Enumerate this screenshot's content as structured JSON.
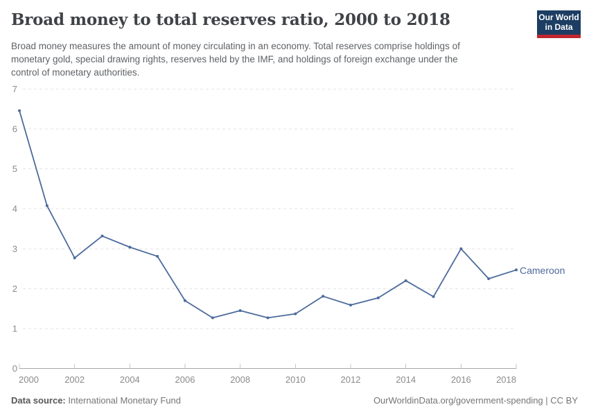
{
  "header": {
    "title": "Broad money to total reserves ratio, 2000 to 2018",
    "subtitle_lines": [
      "Broad money measures the amount of money circulating in an economy. Total reserves comprise holdings of",
      "monetary gold, special drawing rights, reserves held by the IMF, and holdings of foreign exchange under the",
      "control of monetary authorities."
    ]
  },
  "logo": {
    "line1": "Our World",
    "line2": "in Data",
    "bg_color": "#1d3d63",
    "bar_color": "#c0262e"
  },
  "chart_data": {
    "type": "line",
    "title": "Broad money to total reserves ratio, 2000 to 2018",
    "x": [
      2000,
      2001,
      2002,
      2003,
      2004,
      2005,
      2006,
      2007,
      2008,
      2009,
      2010,
      2011,
      2012,
      2013,
      2014,
      2015,
      2016,
      2017,
      2018
    ],
    "series": [
      {
        "name": "Cameroon",
        "color": "#4c6a9c",
        "values": [
          6.46,
          4.08,
          2.77,
          3.32,
          3.04,
          2.81,
          1.7,
          1.27,
          1.45,
          1.27,
          1.37,
          1.81,
          1.59,
          1.77,
          2.2,
          1.8,
          3.0,
          2.25,
          2.47
        ]
      }
    ],
    "xlabel": "",
    "ylabel": "",
    "ylim": [
      0,
      7
    ],
    "yticks": [
      0,
      1,
      2,
      3,
      4,
      5,
      6,
      7
    ],
    "xticks": [
      2000,
      2002,
      2004,
      2006,
      2008,
      2010,
      2012,
      2014,
      2016,
      2018
    ],
    "grid": "horizontal-dashed",
    "legend": "end-of-line-label",
    "marker": "dot"
  },
  "footer": {
    "source_label": "Data source:",
    "source_value": "International Monetary Fund",
    "attribution": "OurWorldinData.org/government-spending | CC BY"
  },
  "colors": {
    "line": "#4c6a9c",
    "grid": "#e3e3e3",
    "axis": "#a8a8a8",
    "tick": "#c6c6c6",
    "axis_label": "#8a8a8a",
    "title": "#3f4246",
    "subtitle": "#5e6266",
    "footer": "#757575"
  }
}
